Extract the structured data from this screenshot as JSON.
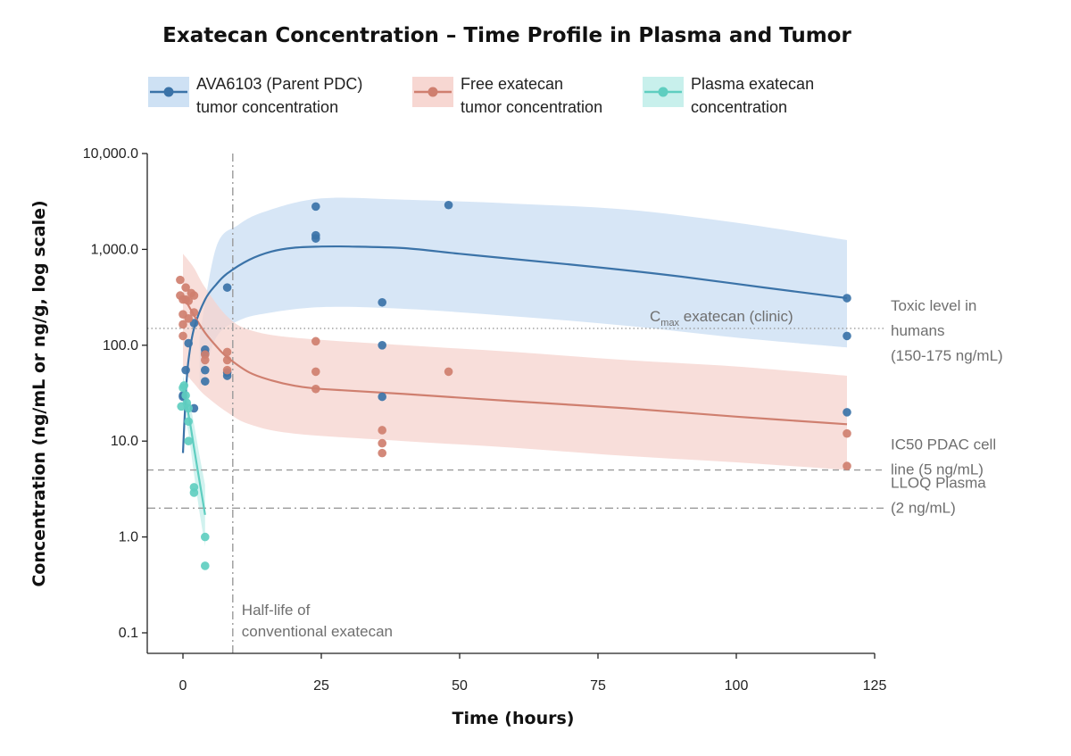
{
  "chart_data": {
    "type": "scatter",
    "title": "Exatecan Concentration – Time Profile in Plasma and Tumor",
    "xlabel": "Time (hours)",
    "ylabel": "Concentration (ng/mL or ng/g, log scale)",
    "x_scale": "linear",
    "y_scale": "log",
    "xlim": [
      -5,
      125
    ],
    "ylim": [
      0.07,
      10000
    ],
    "x_ticks": [
      {
        "value": 0,
        "label": "0"
      },
      {
        "value": 25,
        "label": "25"
      },
      {
        "value": 50,
        "label": "50"
      },
      {
        "value": 75,
        "label": "75"
      },
      {
        "value": 100,
        "label": "100"
      },
      {
        "value": 125,
        "label": "125"
      }
    ],
    "y_ticks": [
      {
        "value": 0.1,
        "label": "0.1"
      },
      {
        "value": 1,
        "label": "1.0"
      },
      {
        "value": 10,
        "label": "10.0"
      },
      {
        "value": 100,
        "label": "100.0"
      },
      {
        "value": 1000,
        "label": "1,000.0"
      },
      {
        "value": 10000,
        "label": "10,000.0"
      }
    ],
    "grid": false,
    "legend_position": "top",
    "series": [
      {
        "name": "AVA6103 (Parent PDC) tumor concentration",
        "legend_lines": [
          "AVA6103 (Parent PDC)",
          "tumor concentration"
        ],
        "color": "#3b73a8",
        "band_color": "#c9def3",
        "points": [
          [
            0,
            30
          ],
          [
            0,
            29
          ],
          [
            0.5,
            55
          ],
          [
            1,
            105
          ],
          [
            2,
            22
          ],
          [
            2,
            170
          ],
          [
            4,
            42
          ],
          [
            4,
            55
          ],
          [
            4,
            82
          ],
          [
            4,
            90
          ],
          [
            8,
            400
          ],
          [
            8,
            48
          ],
          [
            8,
            52
          ],
          [
            24,
            2800
          ],
          [
            24,
            1400
          ],
          [
            24,
            1300
          ],
          [
            36,
            280
          ],
          [
            36,
            100
          ],
          [
            36,
            29
          ],
          [
            48,
            2900
          ],
          [
            120,
            310
          ],
          [
            120,
            125
          ],
          [
            120,
            20
          ]
        ],
        "fit": [
          [
            0,
            7.5
          ],
          [
            0.5,
            30
          ],
          [
            1,
            70
          ],
          [
            2,
            150
          ],
          [
            4,
            300
          ],
          [
            6,
            430
          ],
          [
            8,
            560
          ],
          [
            12,
            780
          ],
          [
            16,
            950
          ],
          [
            20,
            1040
          ],
          [
            25,
            1070
          ],
          [
            30,
            1070
          ],
          [
            40,
            1030
          ],
          [
            50,
            900
          ],
          [
            60,
            790
          ],
          [
            75,
            650
          ],
          [
            90,
            520
          ],
          [
            105,
            400
          ],
          [
            120,
            310
          ]
        ],
        "band_upper": [
          [
            3,
            120
          ],
          [
            6,
            1050
          ],
          [
            10,
            1800
          ],
          [
            15,
            2500
          ],
          [
            25,
            3400
          ],
          [
            40,
            3300
          ],
          [
            60,
            3000
          ],
          [
            80,
            2600
          ],
          [
            100,
            1900
          ],
          [
            120,
            1250
          ]
        ],
        "band_lower": [
          [
            3,
            35
          ],
          [
            6,
            120
          ],
          [
            10,
            180
          ],
          [
            15,
            215
          ],
          [
            25,
            250
          ],
          [
            40,
            240
          ],
          [
            60,
            200
          ],
          [
            80,
            160
          ],
          [
            100,
            120
          ],
          [
            120,
            95
          ]
        ]
      },
      {
        "name": "Free exatecan tumor concentration",
        "legend_lines": [
          "Free exatecan",
          "tumor concentration"
        ],
        "color": "#cf7f6f",
        "band_color": "#f6d3cd",
        "points": [
          [
            -0.5,
            480
          ],
          [
            -0.5,
            330
          ],
          [
            0,
            300
          ],
          [
            0,
            210
          ],
          [
            0,
            165
          ],
          [
            0,
            125
          ],
          [
            0.5,
            400
          ],
          [
            0.5,
            300
          ],
          [
            1,
            290
          ],
          [
            1,
            190
          ],
          [
            1.5,
            350
          ],
          [
            2,
            330
          ],
          [
            2,
            220
          ],
          [
            4,
            80
          ],
          [
            4,
            70
          ],
          [
            8,
            85
          ],
          [
            8,
            70
          ],
          [
            8,
            55
          ],
          [
            24,
            110
          ],
          [
            24,
            53
          ],
          [
            24,
            35
          ],
          [
            36,
            13
          ],
          [
            36,
            9.5
          ],
          [
            36,
            7.5
          ],
          [
            48,
            53
          ],
          [
            120,
            12
          ],
          [
            120,
            5.5
          ]
        ],
        "fit": [
          [
            0,
            330
          ],
          [
            2,
            205
          ],
          [
            4,
            135
          ],
          [
            6,
            98
          ],
          [
            8,
            75
          ],
          [
            12,
            52
          ],
          [
            16,
            43
          ],
          [
            20,
            38
          ],
          [
            25,
            35
          ],
          [
            40,
            31
          ],
          [
            60,
            26
          ],
          [
            80,
            22
          ],
          [
            100,
            18
          ],
          [
            120,
            15
          ]
        ],
        "band_upper": [
          [
            0,
            900
          ],
          [
            2,
            640
          ],
          [
            4,
            400
          ],
          [
            8,
            200
          ],
          [
            12,
            145
          ],
          [
            20,
            120
          ],
          [
            40,
            100
          ],
          [
            60,
            85
          ],
          [
            80,
            70
          ],
          [
            100,
            60
          ],
          [
            120,
            48
          ]
        ],
        "band_lower": [
          [
            0,
            55
          ],
          [
            2,
            40
          ],
          [
            4,
            30
          ],
          [
            8,
            20
          ],
          [
            12,
            15
          ],
          [
            20,
            12
          ],
          [
            40,
            10
          ],
          [
            60,
            8.5
          ],
          [
            80,
            7
          ],
          [
            100,
            6
          ],
          [
            120,
            5
          ]
        ]
      },
      {
        "name": "Plasma exatecan concentration",
        "legend_lines": [
          "Plasma exatecan",
          "concentration"
        ],
        "color": "#5fcec0",
        "band_color": "#c2eeea",
        "points": [
          [
            -0.3,
            23
          ],
          [
            0,
            36
          ],
          [
            0.2,
            38
          ],
          [
            0.5,
            30
          ],
          [
            0.7,
            25
          ],
          [
            1,
            22
          ],
          [
            1,
            16
          ],
          [
            1,
            10
          ],
          [
            2,
            3.3
          ],
          [
            2,
            2.9
          ],
          [
            4,
            1.0
          ],
          [
            4,
            0.5
          ]
        ],
        "fit": [
          [
            0,
            34
          ],
          [
            0.5,
            27
          ],
          [
            1,
            19
          ],
          [
            1.5,
            13
          ],
          [
            2,
            8.5
          ],
          [
            3,
            3.8
          ],
          [
            4,
            1.7
          ]
        ],
        "band_upper": [
          [
            0,
            48
          ],
          [
            1,
            30
          ],
          [
            2,
            15
          ],
          [
            3,
            7
          ],
          [
            4,
            3.5
          ]
        ],
        "band_lower": [
          [
            0,
            22
          ],
          [
            1,
            12
          ],
          [
            2,
            4.5
          ],
          [
            3,
            1.8
          ],
          [
            4,
            0.8
          ]
        ]
      }
    ],
    "reference_lines": [
      {
        "type": "horizontal",
        "y": 150,
        "style": "dotted",
        "labels": [
          "Toxic level in",
          "humans",
          "(150-175 ng/mL)"
        ],
        "inline_label": {
          "main": "C",
          "sub": "max",
          "rest": " exatecan (clinic)"
        }
      },
      {
        "type": "horizontal",
        "y": 5,
        "style": "dashed",
        "labels": [
          "IC50 PDAC cell",
          "line (5 ng/mL)"
        ]
      },
      {
        "type": "horizontal",
        "y": 2,
        "style": "dashdot",
        "labels": [
          "LLOQ Plasma",
          "(2 ng/mL)"
        ]
      },
      {
        "type": "vertical",
        "x": 9,
        "style": "dashdot",
        "labels": [
          "Half-life of",
          "conventional exatecan"
        ]
      }
    ]
  }
}
